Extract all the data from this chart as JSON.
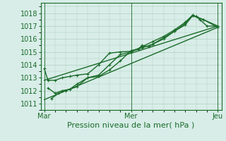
{
  "title": "",
  "xlabel": "Pression niveau de la mer( hPa )",
  "bg_color": "#d8ede8",
  "grid_color": "#b0d0c0",
  "line_color": "#1a6b2a",
  "x_ticks": [
    0,
    48,
    96
  ],
  "x_tick_labels": [
    "Mar",
    "Mer",
    "Jeu"
  ],
  "ylim": [
    1010.5,
    1018.8
  ],
  "xlim": [
    -2,
    98
  ],
  "yticks": [
    1011,
    1012,
    1013,
    1014,
    1015,
    1016,
    1017,
    1018
  ],
  "series": [
    [
      0,
      1013.7,
      2,
      1012.8,
      6,
      1012.8,
      10,
      1013.0,
      14,
      1013.1,
      18,
      1013.2,
      24,
      1013.3,
      30,
      1014.0,
      36,
      1014.9,
      42,
      1015.0,
      48,
      1015.05,
      52,
      1015.2,
      54,
      1015.5,
      58,
      1015.4,
      60,
      1015.6,
      66,
      1016.0,
      72,
      1016.6,
      78,
      1017.1,
      82,
      1017.8,
      84,
      1017.75,
      86,
      1017.5,
      90,
      1017.0,
      96,
      1017.0
    ],
    [
      2,
      1012.2,
      6,
      1011.8,
      10,
      1012.0,
      14,
      1012.1,
      18,
      1012.5,
      24,
      1013.0,
      30,
      1013.1,
      36,
      1013.6,
      42,
      1014.3,
      48,
      1015.1,
      54,
      1015.3,
      60,
      1015.6,
      66,
      1016.1,
      72,
      1016.6,
      78,
      1017.2,
      82,
      1017.8,
      88,
      1017.5,
      96,
      1017.0
    ],
    [
      4,
      1011.4,
      8,
      1011.8,
      12,
      1012.0,
      18,
      1012.3,
      24,
      1013.0,
      30,
      1013.2,
      36,
      1014.0,
      42,
      1014.8,
      48,
      1015.0,
      54,
      1015.4,
      60,
      1015.8,
      66,
      1016.2,
      72,
      1016.7,
      78,
      1017.3,
      82,
      1017.85,
      88,
      1017.5,
      96,
      1016.9
    ],
    [
      0,
      1012.8,
      96,
      1017.0
    ],
    [
      0,
      1011.3,
      96,
      1016.9
    ]
  ],
  "line_width": 1.0,
  "fontsize_label": 8,
  "fontsize_tick": 7
}
